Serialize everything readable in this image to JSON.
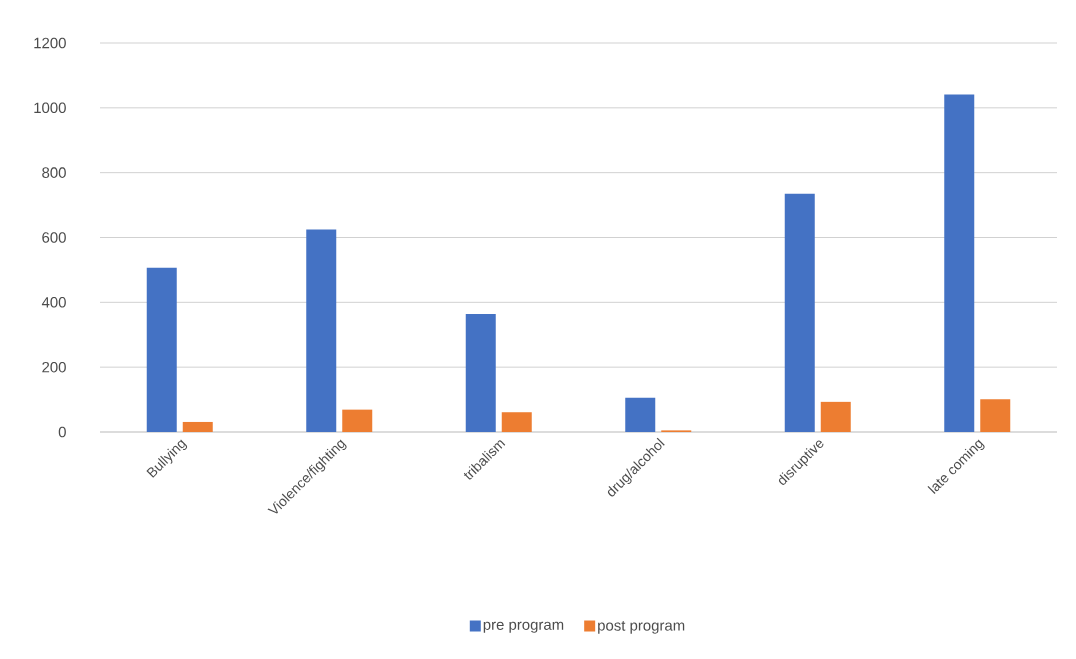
{
  "chart_data": {
    "type": "bar",
    "categories": [
      "Bullying",
      "Violence/fighting",
      "tribalism",
      "drug/alcohol",
      "disruptive",
      "late coming"
    ],
    "series": [
      {
        "name": "pre program",
        "color": "#4472c4",
        "values": [
          507,
          625,
          364,
          106,
          735,
          1041
        ]
      },
      {
        "name": "post program",
        "color": "#ed7d31",
        "values": [
          31,
          69,
          61,
          5,
          93,
          101
        ]
      }
    ],
    "ylim": [
      0,
      1200
    ],
    "yticks": [
      0,
      200,
      400,
      600,
      800,
      1000,
      1200
    ],
    "grid": "y",
    "legend": "bottom"
  }
}
